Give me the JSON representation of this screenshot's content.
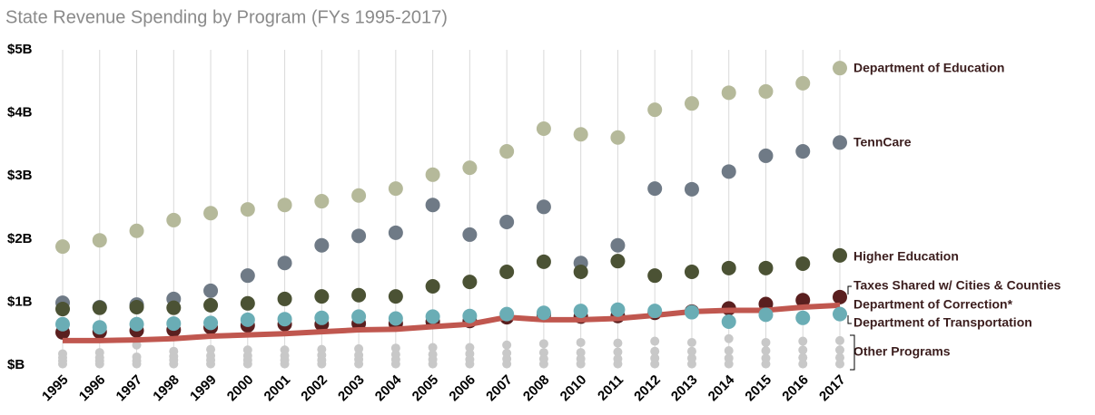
{
  "chart_data": {
    "type": "scatter",
    "title": "State Revenue Spending by Program (FYs 1995-2017)",
    "categories": [
      "1995",
      "1996",
      "1997",
      "1998",
      "1999",
      "2000",
      "2001",
      "2002",
      "2003",
      "2004",
      "2005",
      "2006",
      "2007",
      "2008",
      "2010",
      "2011",
      "2012",
      "2013",
      "2014",
      "2015",
      "2016",
      "2017"
    ],
    "ylim": [
      0,
      5
    ],
    "yticks": [
      {
        "value": 0,
        "label": "$B"
      },
      {
        "value": 1,
        "label": "$1B"
      },
      {
        "value": 2,
        "label": "$2B"
      },
      {
        "value": 3,
        "label": "$3B"
      },
      {
        "value": 4,
        "label": "$4B"
      },
      {
        "value": 5,
        "label": "$5B"
      }
    ],
    "grid": true,
    "series": [
      {
        "name": "Other Programs",
        "color": "#c8c8c8",
        "style": "points",
        "values": [
          [
            0.02,
            0.07,
            0.12,
            0.18
          ],
          [
            0.02,
            0.07,
            0.12,
            0.2
          ],
          [
            0.02,
            0.07,
            0.13,
            0.32
          ],
          [
            0.02,
            0.08,
            0.14,
            0.22
          ],
          [
            0.02,
            0.08,
            0.15,
            0.25
          ],
          [
            0.02,
            0.08,
            0.15,
            0.24
          ],
          [
            0.02,
            0.08,
            0.15,
            0.24
          ],
          [
            0.02,
            0.08,
            0.16,
            0.25
          ],
          [
            0.02,
            0.09,
            0.16,
            0.26
          ],
          [
            0.02,
            0.09,
            0.17,
            0.27
          ],
          [
            0.02,
            0.09,
            0.17,
            0.28
          ],
          [
            0.02,
            0.09,
            0.18,
            0.28
          ],
          [
            0.02,
            0.1,
            0.19,
            0.32
          ],
          [
            0.02,
            0.1,
            0.2,
            0.34
          ],
          [
            0.02,
            0.1,
            0.2,
            0.36
          ],
          [
            0.02,
            0.1,
            0.21,
            0.35
          ],
          [
            0.02,
            0.11,
            0.22,
            0.38
          ],
          [
            0.02,
            0.11,
            0.22,
            0.36
          ],
          [
            0.02,
            0.11,
            0.23,
            0.42
          ],
          [
            0.02,
            0.11,
            0.23,
            0.36
          ],
          [
            0.02,
            0.12,
            0.24,
            0.38
          ],
          [
            0.02,
            0.12,
            0.24,
            0.39
          ]
        ]
      },
      {
        "name": "Department of Education",
        "color": "#b5b99a",
        "style": "points",
        "values": [
          1.88,
          1.98,
          2.13,
          2.3,
          2.41,
          2.47,
          2.54,
          2.6,
          2.69,
          2.8,
          3.02,
          3.13,
          3.39,
          3.75,
          3.66,
          3.61,
          4.05,
          4.15,
          4.32,
          4.34,
          4.47,
          4.71
        ]
      },
      {
        "name": "TennCare",
        "color": "#6f7a86",
        "style": "points",
        "values": [
          0.99,
          0.92,
          0.96,
          1.05,
          1.18,
          1.42,
          1.62,
          1.9,
          2.05,
          2.1,
          2.54,
          2.07,
          2.27,
          2.51,
          1.62,
          1.9,
          2.8,
          2.79,
          3.07,
          3.32,
          3.39,
          3.53
        ]
      },
      {
        "name": "Higher Education",
        "color": "#4b5234",
        "style": "points",
        "values": [
          0.89,
          0.91,
          0.92,
          0.91,
          0.95,
          0.98,
          1.05,
          1.09,
          1.11,
          1.09,
          1.25,
          1.32,
          1.48,
          1.64,
          1.48,
          1.65,
          1.42,
          1.48,
          1.54,
          1.54,
          1.61,
          1.74
        ]
      },
      {
        "name": "Taxes Shared w/ Cities & Counties",
        "color": "#5a1f1f",
        "style": "points",
        "values": [
          0.52,
          0.53,
          0.55,
          0.56,
          0.6,
          0.63,
          0.65,
          0.65,
          0.66,
          0.66,
          0.69,
          0.7,
          0.76,
          0.8,
          0.77,
          0.78,
          0.83,
          0.85,
          0.9,
          0.97,
          1.03,
          1.08
        ]
      },
      {
        "name": "Department of Correction*",
        "color": "#c0574f",
        "style": "line",
        "values": [
          0.39,
          0.39,
          0.4,
          0.42,
          0.46,
          0.48,
          0.5,
          0.53,
          0.56,
          0.57,
          0.61,
          0.65,
          0.76,
          0.72,
          0.72,
          0.74,
          0.79,
          0.85,
          0.87,
          0.87,
          0.92,
          0.95
        ]
      },
      {
        "name": "Department of Transportation",
        "color": "#6aadb5",
        "style": "points",
        "values": [
          0.65,
          0.6,
          0.65,
          0.66,
          0.67,
          0.72,
          0.73,
          0.75,
          0.77,
          0.74,
          0.77,
          0.78,
          0.81,
          0.83,
          0.86,
          0.88,
          0.86,
          0.84,
          0.69,
          0.8,
          0.75,
          0.81
        ]
      }
    ]
  }
}
